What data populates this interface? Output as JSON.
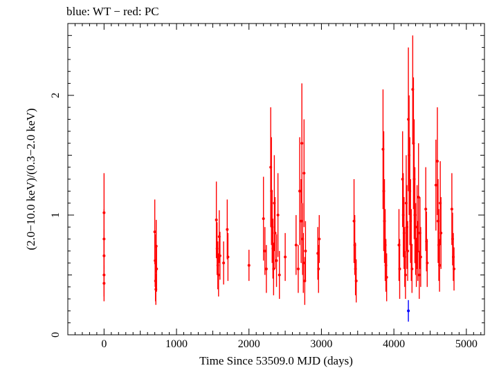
{
  "chart_data": {
    "type": "scatter",
    "title": "blue: WT − red: PC",
    "xlabel": "Time Since 53509.0 MJD (days)",
    "ylabel": "(2.0−10.0 keV)/(0.3−2.0 keV)",
    "xlim": [
      -500,
      5250
    ],
    "ylim": [
      0,
      2.6
    ],
    "xticks": [
      0,
      1000,
      2000,
      3000,
      4000,
      5000
    ],
    "yticks": [
      0,
      1,
      2
    ],
    "grid": false,
    "colors": {
      "WT": "#0000ff",
      "PC": "#ff0000"
    },
    "series": [
      {
        "name": "PC",
        "color": "#ff0000",
        "points": [
          [
            0,
            1.02,
            0.33
          ],
          [
            0,
            0.8,
            0.25
          ],
          [
            0,
            0.66,
            0.22
          ],
          [
            0,
            0.5,
            0.18
          ],
          [
            0,
            0.43,
            0.15
          ],
          [
            700,
            0.86,
            0.27
          ],
          [
            705,
            0.62,
            0.22
          ],
          [
            710,
            0.45,
            0.17
          ],
          [
            715,
            0.38,
            0.13
          ],
          [
            720,
            0.74,
            0.22
          ],
          [
            725,
            0.55,
            0.19
          ],
          [
            1550,
            0.96,
            0.32
          ],
          [
            1560,
            0.72,
            0.22
          ],
          [
            1570,
            0.58,
            0.2
          ],
          [
            1580,
            0.5,
            0.18
          ],
          [
            1590,
            0.82,
            0.22
          ],
          [
            1600,
            0.66,
            0.2
          ],
          [
            1650,
            0.6,
            0.18
          ],
          [
            1700,
            0.88,
            0.25
          ],
          [
            1710,
            0.65,
            0.2
          ],
          [
            2000,
            0.58,
            0.13
          ],
          [
            2200,
            0.97,
            0.35
          ],
          [
            2220,
            0.7,
            0.2
          ],
          [
            2240,
            0.55,
            0.2
          ],
          [
            2300,
            1.4,
            0.5
          ],
          [
            2310,
            1.2,
            0.45
          ],
          [
            2320,
            0.9,
            0.3
          ],
          [
            2330,
            0.72,
            0.25
          ],
          [
            2340,
            0.55,
            0.22
          ],
          [
            2350,
            1.1,
            0.4
          ],
          [
            2360,
            0.85,
            0.3
          ],
          [
            2380,
            0.62,
            0.22
          ],
          [
            2400,
            1.0,
            0.35
          ],
          [
            2420,
            0.5,
            0.2
          ],
          [
            2500,
            0.65,
            0.2
          ],
          [
            2650,
            0.75,
            0.25
          ],
          [
            2680,
            0.55,
            0.2
          ],
          [
            2700,
            1.2,
            0.45
          ],
          [
            2720,
            0.95,
            0.35
          ],
          [
            2730,
            1.6,
            0.5
          ],
          [
            2740,
            0.8,
            0.3
          ],
          [
            2750,
            0.6,
            0.25
          ],
          [
            2760,
            1.35,
            0.45
          ],
          [
            2770,
            0.45,
            0.2
          ],
          [
            2780,
            0.7,
            0.25
          ],
          [
            2950,
            0.68,
            0.22
          ],
          [
            2960,
            0.55,
            0.2
          ],
          [
            2970,
            0.8,
            0.2
          ],
          [
            3450,
            0.95,
            0.35
          ],
          [
            3460,
            0.75,
            0.25
          ],
          [
            3470,
            0.55,
            0.22
          ],
          [
            3480,
            0.45,
            0.18
          ],
          [
            3850,
            1.55,
            0.5
          ],
          [
            3860,
            1.2,
            0.5
          ],
          [
            3870,
            0.95,
            0.35
          ],
          [
            3880,
            0.75,
            0.3
          ],
          [
            3890,
            0.58,
            0.22
          ],
          [
            3900,
            0.48,
            0.2
          ],
          [
            4070,
            0.75,
            0.3
          ],
          [
            4080,
            0.55,
            0.25
          ],
          [
            4120,
            1.3,
            0.4
          ],
          [
            4130,
            1.0,
            0.35
          ],
          [
            4140,
            0.85,
            0.3
          ],
          [
            4150,
            0.65,
            0.25
          ],
          [
            4160,
            0.5,
            0.2
          ],
          [
            4170,
            1.1,
            0.4
          ],
          [
            4180,
            0.9,
            0.35
          ],
          [
            4190,
            0.7,
            0.25
          ],
          [
            4200,
            1.8,
            0.6
          ],
          [
            4210,
            1.5,
            0.5
          ],
          [
            4220,
            1.2,
            0.45
          ],
          [
            4230,
            0.95,
            0.35
          ],
          [
            4240,
            0.75,
            0.3
          ],
          [
            4250,
            0.55,
            0.2
          ],
          [
            4260,
            2.05,
            0.45
          ],
          [
            4270,
            1.6,
            0.55
          ],
          [
            4280,
            1.3,
            0.5
          ],
          [
            4290,
            1.0,
            0.4
          ],
          [
            4300,
            0.8,
            0.3
          ],
          [
            4310,
            0.6,
            0.2
          ],
          [
            4320,
            0.9,
            0.35
          ],
          [
            4330,
            0.7,
            0.25
          ],
          [
            4340,
            1.15,
            0.45
          ],
          [
            4350,
            0.5,
            0.2
          ],
          [
            4360,
            0.85,
            0.3
          ],
          [
            4370,
            0.65,
            0.25
          ],
          [
            4440,
            1.05,
            0.35
          ],
          [
            4450,
            0.78,
            0.25
          ],
          [
            4460,
            0.6,
            0.2
          ],
          [
            4580,
            1.25,
            0.38
          ],
          [
            4600,
            1.45,
            0.45
          ],
          [
            4610,
            0.95,
            0.35
          ],
          [
            4620,
            0.75,
            0.3
          ],
          [
            4630,
            0.58,
            0.22
          ],
          [
            4640,
            1.1,
            0.35
          ],
          [
            4650,
            0.85,
            0.3
          ],
          [
            4800,
            1.05,
            0.3
          ],
          [
            4810,
            0.8,
            0.22
          ],
          [
            4820,
            0.65,
            0.2
          ],
          [
            4830,
            0.55,
            0.18
          ]
        ]
      },
      {
        "name": "WT",
        "color": "#0000ff",
        "points": [
          [
            4200,
            0.2,
            0.09
          ]
        ]
      }
    ]
  }
}
